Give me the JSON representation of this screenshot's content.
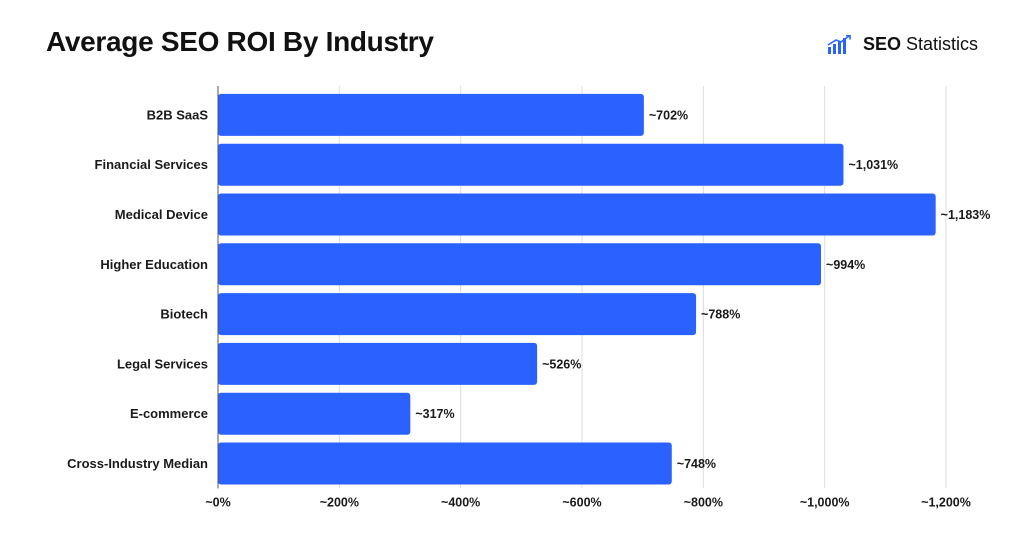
{
  "header": {
    "title": "Average SEO ROI By Industry",
    "brand_bold": "SEO",
    "brand_rest": " Statistics",
    "brand_icon": "bar-chart-logo-icon"
  },
  "colors": {
    "bar": "#2962ff",
    "grid": "#dcdcdc",
    "text": "#1a1a1a"
  },
  "chart_data": {
    "type": "bar",
    "orientation": "horizontal",
    "title": "Average SEO ROI By Industry",
    "categories": [
      "B2B SaaS",
      "Financial Services",
      "Medical Device",
      "Higher Education",
      "Biotech",
      "Legal Services",
      "E-commerce",
      "Cross-Industry Median"
    ],
    "values": [
      702,
      1031,
      1183,
      994,
      788,
      526,
      317,
      748
    ],
    "value_labels": [
      "~702%",
      "~1,031%",
      "~1,183%",
      "~994%",
      "~788%",
      "~526%",
      "~317%",
      "~748%"
    ],
    "xlim": [
      0,
      1200
    ],
    "xticks": [
      0,
      200,
      400,
      600,
      800,
      1000,
      1200
    ],
    "xtick_labels": [
      "~0%",
      "~200%",
      "~400%",
      "~600%",
      "~800%",
      "~1,000%",
      "~1,200%"
    ],
    "xlabel": "",
    "ylabel": "",
    "grid": "vertical",
    "legend": "none"
  }
}
